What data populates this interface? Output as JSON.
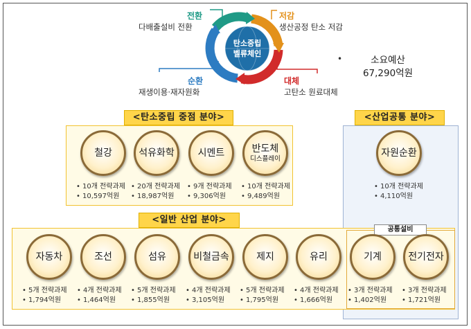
{
  "cycle": {
    "center": [
      "탄소중립",
      "벨류체인"
    ],
    "items": [
      {
        "head": "전환",
        "sub": "다배출설비 전환",
        "color": "#1f9a86"
      },
      {
        "head": "저감",
        "sub": "생산공정 탄소 저감",
        "color": "#e3911b"
      },
      {
        "head": "순환",
        "sub": "재생이용·재자원화",
        "color": "#2d7cc2"
      },
      {
        "head": "대체",
        "sub": "고탄소 원료대체",
        "color": "#d12b2b"
      }
    ]
  },
  "budget": {
    "bullet": "•",
    "label": "소요예산",
    "amount": "67,290억원"
  },
  "sections": {
    "carbon": {
      "title": "<탄소중립 중점 분야>"
    },
    "common_industry": {
      "title": "<산업공통 분야>"
    },
    "general": {
      "title": "<일반 산업 분야>"
    },
    "common_equipment": {
      "title": "공통설비"
    }
  },
  "carbon_items": [
    {
      "name": "철강",
      "sub": "",
      "tasks": "10개 전략과제",
      "budget": "10,597억원"
    },
    {
      "name": "석유화학",
      "sub": "",
      "tasks": "20개 전략과제",
      "budget": "18,987억원"
    },
    {
      "name": "시멘트",
      "sub": "",
      "tasks": "9개 전략과제",
      "budget": "9,306억원"
    },
    {
      "name": "반도체",
      "sub": "디스플레이",
      "tasks": "10개 전략과제",
      "budget": "9,489억원"
    }
  ],
  "common_items": [
    {
      "name": "자원순환",
      "tasks": "10개 전략과제",
      "budget": "4,110억원"
    }
  ],
  "general_items": [
    {
      "name": "자동차",
      "tasks": "5개 전략과제",
      "budget": "1,794억원"
    },
    {
      "name": "조선",
      "tasks": "4개 전략과제",
      "budget": "1,464억원"
    },
    {
      "name": "섬유",
      "tasks": "5개 전략과제",
      "budget": "1,855억원"
    },
    {
      "name": "비철금속",
      "tasks": "4개 전략과제",
      "budget": "3,105억원"
    },
    {
      "name": "제지",
      "tasks": "5개 전략과제",
      "budget": "1,795억원"
    },
    {
      "name": "유리",
      "tasks": "4개 전략과제",
      "budget": "1,666억원"
    }
  ],
  "equipment_items": [
    {
      "name": "기계",
      "tasks": "3개 전략과제",
      "budget": "1,402억원"
    },
    {
      "name": "전기전자",
      "tasks": "3개 전략과제",
      "budget": "1,721억원"
    }
  ],
  "bullet": "•"
}
